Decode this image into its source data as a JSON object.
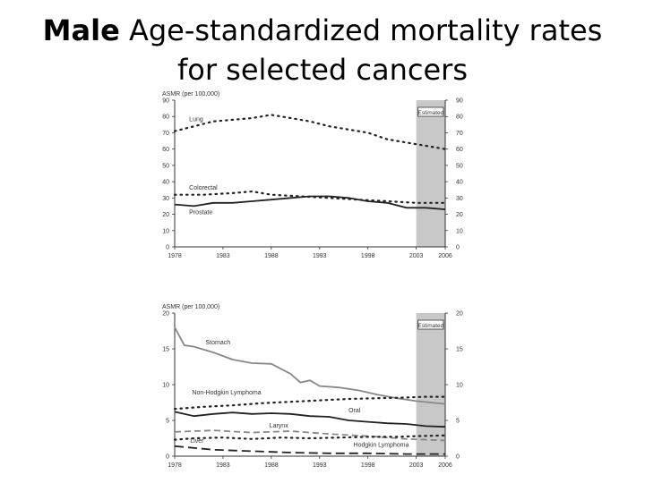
{
  "slide": {
    "title_bold": "Male",
    "title_rest": " Age-standardized mortality rates",
    "title_line2": "for selected cancers"
  },
  "colors": {
    "estimated_shade": "#c8c8c8",
    "ink": "#222222",
    "grey_line": "#888888"
  },
  "chart_data": [
    {
      "type": "line",
      "ylabel": "ASMR (per 100,000)",
      "ylim": [
        0,
        90
      ],
      "yticks": [
        "0",
        "10",
        "20",
        "30",
        "40",
        "50",
        "60",
        "70",
        "80",
        "90"
      ],
      "xlim": [
        1978,
        2006
      ],
      "xticks": [
        1978,
        1983,
        1988,
        1993,
        1998,
        2003,
        2006
      ],
      "xtick_labels": [
        "1978",
        "1983",
        "1988",
        "1993",
        "1998",
        "2003",
        "2006"
      ],
      "estimated_from": 2003,
      "estimated_label": "Estimated",
      "grid": false,
      "series": [
        {
          "name": "Lung",
          "style": "dotted",
          "x": [
            1978,
            1980,
            1982,
            1984,
            1986,
            1988,
            1990,
            1992,
            1994,
            1996,
            1998,
            2000,
            2002,
            2004,
            2006
          ],
          "y": [
            71,
            74,
            77,
            78,
            79,
            81,
            79,
            77,
            74,
            72,
            70,
            66,
            64,
            62,
            60
          ]
        },
        {
          "name": "Colorectal",
          "style": "dotted",
          "x": [
            1978,
            1981,
            1984,
            1986,
            1988,
            1991,
            1994,
            1997,
            2000,
            2003,
            2006
          ],
          "y": [
            32,
            32,
            33,
            34,
            32,
            31,
            30,
            29,
            28,
            27,
            27
          ]
        },
        {
          "name": "Prostate",
          "style": "solid",
          "x": [
            1978,
            1980,
            1982,
            1984,
            1986,
            1988,
            1990,
            1992,
            1994,
            1996,
            1998,
            2000,
            2002,
            2004,
            2006
          ],
          "y": [
            26,
            25,
            27,
            27,
            28,
            29,
            30,
            31,
            31,
            30,
            28,
            27,
            24,
            24,
            23
          ]
        }
      ]
    },
    {
      "type": "line",
      "ylabel": "ASMR (per 100,000)",
      "ylim": [
        0,
        20
      ],
      "yticks": [
        "0",
        "5",
        "10",
        "15",
        "20"
      ],
      "xlim": [
        1978,
        2006
      ],
      "xticks": [
        1978,
        1983,
        1988,
        1993,
        1998,
        2003,
        2006
      ],
      "xtick_labels": [
        "1978",
        "1983",
        "1988",
        "1993",
        "1998",
        "2003",
        "2006"
      ],
      "estimated_from": 2003,
      "estimated_label": "Estimated",
      "grid": false,
      "series": [
        {
          "name": "Stomach",
          "style": "grey",
          "x": [
            1978,
            1979,
            1980,
            1982,
            1984,
            1986,
            1988,
            1990,
            1991,
            1992,
            1993,
            1995,
            1997,
            1999,
            2001,
            2003,
            2006
          ],
          "y": [
            18,
            15.5,
            15.3,
            14.5,
            13.5,
            13,
            12.9,
            11.5,
            10.3,
            10.6,
            9.8,
            9.6,
            9.2,
            8.6,
            8.1,
            7.7,
            7.3
          ]
        },
        {
          "name": "Non-Hodgkin Lymphoma",
          "style": "dotted",
          "x": [
            1978,
            1981,
            1984,
            1987,
            1990,
            1993,
            1996,
            1999,
            2002,
            2004,
            2006
          ],
          "y": [
            6.6,
            6.9,
            7.1,
            7.4,
            7.6,
            7.8,
            8.0,
            8.1,
            8.2,
            8.3,
            8.3
          ]
        },
        {
          "name": "Oral",
          "style": "solid",
          "x": [
            1978,
            1980,
            1982,
            1984,
            1986,
            1988,
            1990,
            1992,
            1994,
            1996,
            1998,
            2000,
            2002,
            2004,
            2006
          ],
          "y": [
            6.2,
            5.6,
            5.9,
            6.1,
            5.9,
            6.0,
            5.9,
            5.6,
            5.5,
            5.0,
            4.8,
            4.6,
            4.5,
            4.2,
            4.1
          ]
        },
        {
          "name": "Larynx",
          "style": "dashed",
          "x": [
            1978,
            1982,
            1986,
            1990,
            1994,
            1998,
            2002,
            2006
          ],
          "y": [
            3.4,
            3.6,
            3.3,
            3.5,
            3.1,
            2.8,
            2.4,
            2.2
          ]
        },
        {
          "name": "Liver",
          "style": "dotted",
          "x": [
            1978,
            1980,
            1983,
            1986,
            1989,
            1992,
            1995,
            1998,
            2001,
            2003,
            2006
          ],
          "y": [
            2.3,
            2.5,
            2.6,
            2.4,
            2.6,
            2.5,
            2.6,
            2.7,
            2.7,
            2.8,
            2.9
          ]
        },
        {
          "name": "Hodgkin Lymphoma",
          "style": "longdash",
          "x": [
            1978,
            1982,
            1986,
            1990,
            1994,
            1998,
            2002,
            2006
          ],
          "y": [
            1.4,
            0.9,
            0.7,
            0.5,
            0.4,
            0.4,
            0.3,
            0.3
          ]
        }
      ]
    }
  ],
  "label_anchors": [
    [
      {
        "name": "Lung",
        "x": 1979.5,
        "y": 77
      },
      {
        "name": "Colorectal",
        "x": 1979.5,
        "y": 35
      },
      {
        "name": "Prostate",
        "x": 1979.5,
        "y": 20
      }
    ],
    [
      {
        "name": "Stomach",
        "x": 1981.2,
        "y": 15.6
      },
      {
        "name": "Non-Hodgkin Lymphoma",
        "x": 1979.8,
        "y": 8.6
      },
      {
        "name": "Oral",
        "x": 1996.0,
        "y": 6.1
      },
      {
        "name": "Larynx",
        "x": 1987.8,
        "y": 4.0
      },
      {
        "name": "Liver",
        "x": 1979.6,
        "y": 1.9
      },
      {
        "name": "Hodgkin Lymphoma",
        "x": 1996.5,
        "y": 1.3
      }
    ]
  ]
}
